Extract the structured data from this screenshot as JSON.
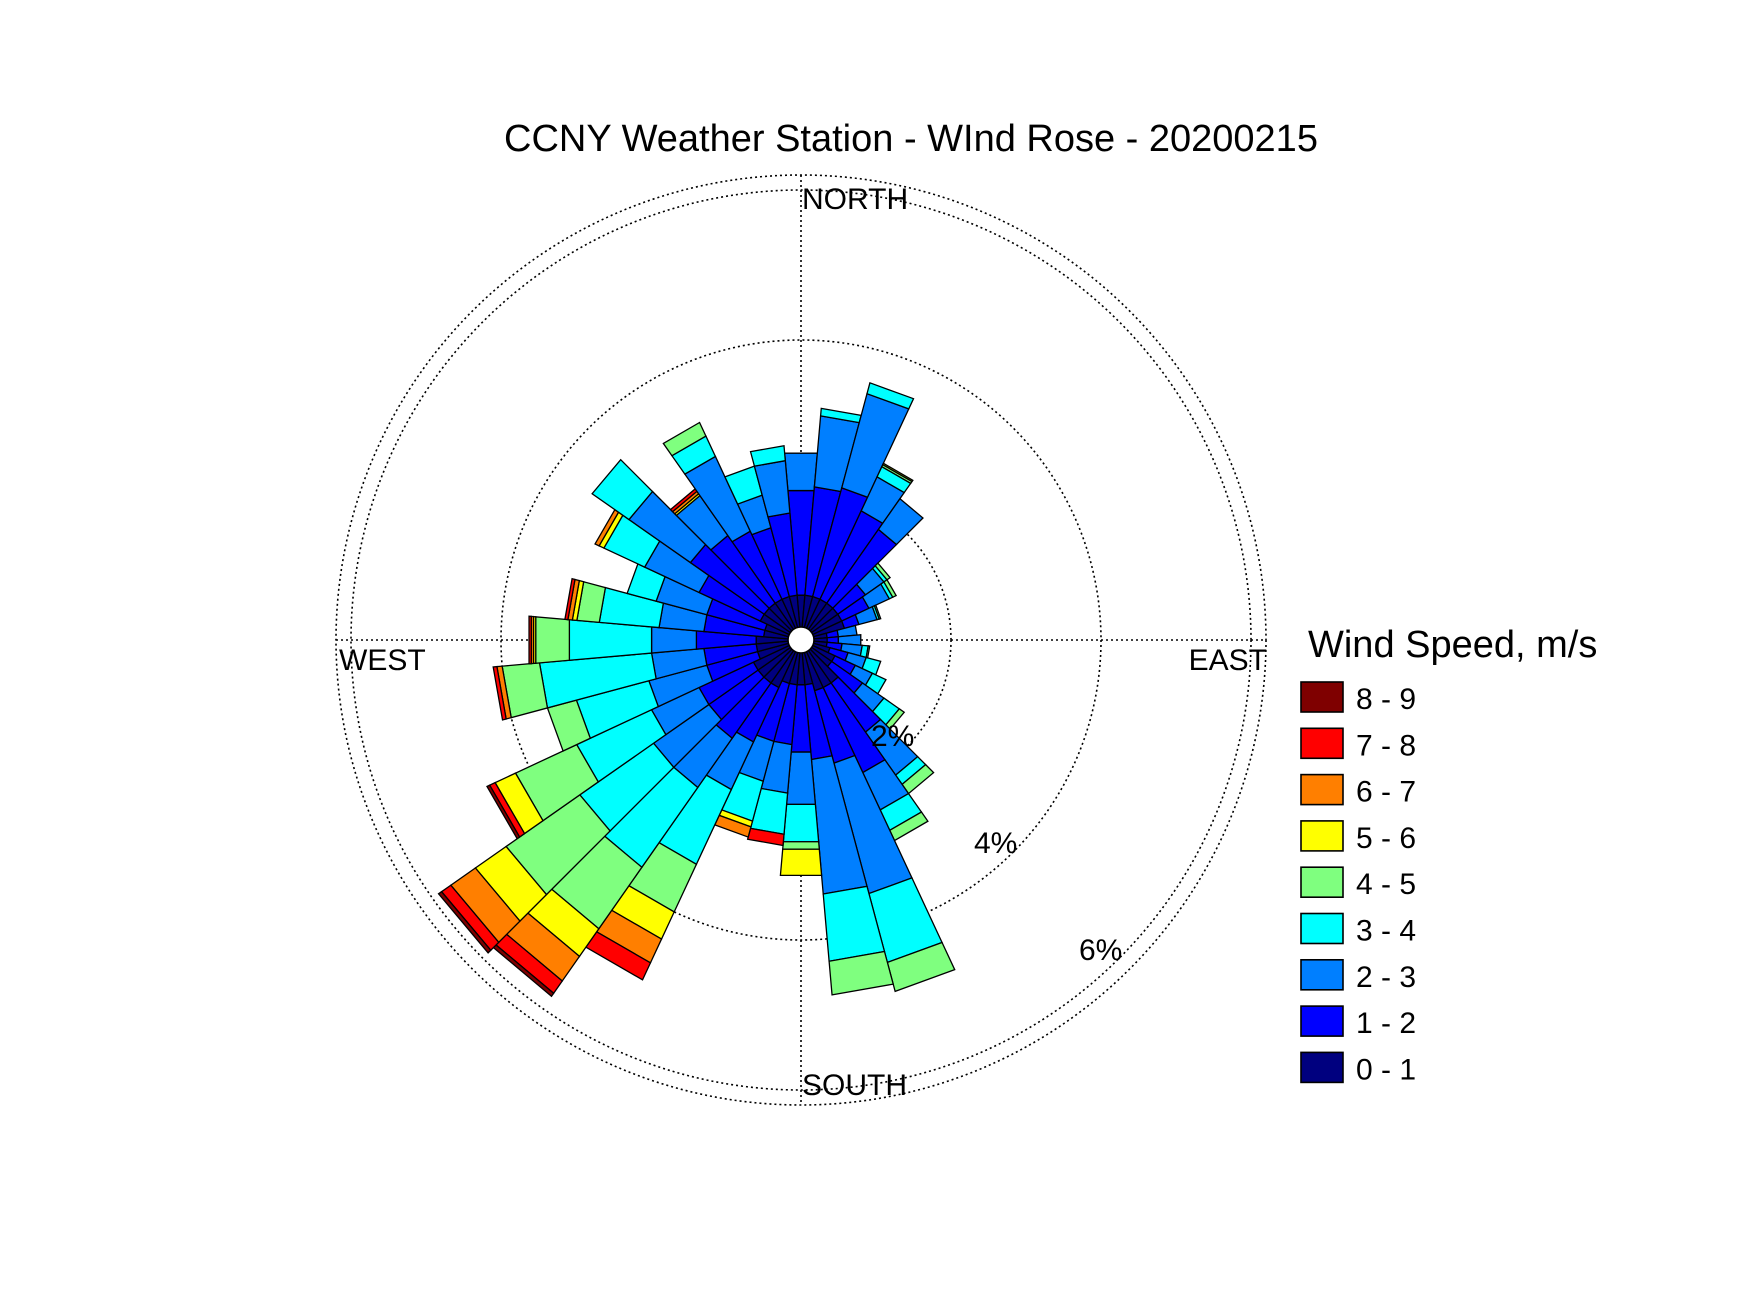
{
  "chart_data": {
    "type": "windrose",
    "title": "CCNY Weather Station - WInd Rose - 20200215",
    "directions": {
      "north": "NORTH",
      "south": "SOUTH",
      "east": "EAST",
      "west": "WEST"
    },
    "radial_ticks": [
      "2%",
      "4%",
      "6%"
    ],
    "radial_tick_values": [
      2,
      4,
      6
    ],
    "rmax": 6.2,
    "sector_count": 36,
    "legend_title": "Wind Speed, m/s",
    "bins": [
      {
        "label": "0 - 1",
        "color": "#00007F"
      },
      {
        "label": "1 - 2",
        "color": "#0000FF"
      },
      {
        "label": "2 - 3",
        "color": "#007FFF"
      },
      {
        "label": "3 - 4",
        "color": "#00FFFF"
      },
      {
        "label": "4 - 5",
        "color": "#7FFF7F"
      },
      {
        "label": "5 - 6",
        "color": "#FFFF00"
      },
      {
        "label": "6 - 7",
        "color": "#FF7F00"
      },
      {
        "label": "7 - 8",
        "color": "#FF0000"
      },
      {
        "label": "8 - 9",
        "color": "#7F0000"
      }
    ],
    "sectors": [
      {
        "direction_deg": 0,
        "cumulative_pct": [
          0.6,
          2.0,
          2.5
        ]
      },
      {
        "direction_deg": 10,
        "cumulative_pct": [
          0.6,
          2.05,
          3.0,
          3.1
        ]
      },
      {
        "direction_deg": 20,
        "cumulative_pct": [
          0.6,
          2.1,
          3.4,
          3.55
        ]
      },
      {
        "direction_deg": 30,
        "cumulative_pct": [
          0.6,
          1.9,
          2.4,
          2.55,
          2.58,
          2.6
        ]
      },
      {
        "direction_deg": 40,
        "cumulative_pct": [
          0.6,
          1.8,
          2.3
        ]
      },
      {
        "direction_deg": 50,
        "cumulative_pct": [
          0.6,
          1.05,
          1.35,
          1.4,
          1.45
        ]
      },
      {
        "direction_deg": 60,
        "cumulative_pct": [
          0.6,
          1.0,
          1.3,
          1.35,
          1.4
        ]
      },
      {
        "direction_deg": 70,
        "cumulative_pct": [
          0.6,
          0.8,
          1.05,
          1.08,
          1.1
        ]
      },
      {
        "direction_deg": 80,
        "cumulative_pct": [
          0.35,
          0.5,
          0.75
        ]
      },
      {
        "direction_deg": 90,
        "cumulative_pct": [
          0.35,
          0.5,
          0.8
        ]
      },
      {
        "direction_deg": 100,
        "cumulative_pct": [
          0.35,
          0.55,
          0.82,
          0.9,
          0.92
        ]
      },
      {
        "direction_deg": 110,
        "cumulative_pct": [
          0.4,
          0.65,
          0.9,
          1.1
        ]
      },
      {
        "direction_deg": 120,
        "cumulative_pct": [
          0.5,
          0.8,
          1.05,
          1.25
        ]
      },
      {
        "direction_deg": 130,
        "cumulative_pct": [
          0.5,
          1.0,
          1.35,
          1.6,
          1.68
        ]
      },
      {
        "direction_deg": 140,
        "cumulative_pct": [
          0.7,
          1.5,
          2.2,
          2.35,
          2.5
        ]
      },
      {
        "direction_deg": 150,
        "cumulative_pct": [
          0.7,
          1.95,
          2.5,
          2.8,
          2.95
        ]
      },
      {
        "direction_deg": 160,
        "cumulative_pct": [
          0.7,
          1.7,
          3.5,
          4.45,
          4.85
        ]
      },
      {
        "direction_deg": 170,
        "cumulative_pct": [
          0.6,
          1.6,
          3.4,
          4.3,
          4.75
        ]
      },
      {
        "direction_deg": 180,
        "cumulative_pct": [
          0.6,
          1.5,
          2.2,
          2.7,
          2.8,
          3.15
        ]
      },
      {
        "direction_deg": 190,
        "cumulative_pct": [
          0.6,
          1.4,
          2.05,
          2.6,
          2.6,
          2.6,
          2.6,
          2.75
        ]
      },
      {
        "direction_deg": 200,
        "cumulative_pct": [
          0.6,
          1.4,
          1.95,
          2.5,
          2.5,
          2.58,
          2.72
        ]
      },
      {
        "direction_deg": 210,
        "cumulative_pct": [
          0.7,
          1.5,
          2.2,
          3.3,
          4.0,
          4.4,
          4.75,
          5.0
        ]
      },
      {
        "direction_deg": 220,
        "cumulative_pct": [
          0.7,
          1.6,
          2.4,
          3.7,
          4.7,
          5.15,
          5.55,
          5.75,
          5.8
        ]
      },
      {
        "direction_deg": 230,
        "cumulative_pct": [
          0.7,
          1.5,
          2.4,
          3.6,
          4.8,
          5.3,
          5.7,
          5.85,
          5.9
        ]
      },
      {
        "direction_deg": 240,
        "cumulative_pct": [
          0.7,
          1.5,
          2.2,
          3.3,
          4.2,
          4.5,
          4.5,
          4.58,
          4.62
        ]
      },
      {
        "direction_deg": 250,
        "cumulative_pct": [
          0.6,
          1.3,
          2.1,
          3.1,
          3.5,
          3.5,
          3.5,
          3.5
        ]
      },
      {
        "direction_deg": 260,
        "cumulative_pct": [
          0.6,
          1.3,
          2.0,
          3.5,
          4.0,
          4.0,
          4.07,
          4.12
        ]
      },
      {
        "direction_deg": 270,
        "cumulative_pct": [
          0.6,
          1.4,
          2.0,
          3.1,
          3.55,
          3.58,
          3.61,
          3.64
        ]
      },
      {
        "direction_deg": 280,
        "cumulative_pct": [
          0.5,
          1.3,
          1.9,
          2.7,
          3.0,
          3.06,
          3.12,
          3.16
        ]
      },
      {
        "direction_deg": 290,
        "cumulative_pct": [
          0.5,
          1.3,
          2.0,
          2.4
        ]
      },
      {
        "direction_deg": 300,
        "cumulative_pct": [
          0.6,
          1.5,
          2.3,
          2.9,
          2.9,
          2.97,
          3.03
        ]
      },
      {
        "direction_deg": 310,
        "cumulative_pct": [
          0.6,
          1.8,
          2.8,
          3.4
        ]
      },
      {
        "direction_deg": 320,
        "cumulative_pct": [
          0.6,
          1.7,
          2.35,
          2.35,
          2.35,
          2.38,
          2.42,
          2.46
        ]
      },
      {
        "direction_deg": 330,
        "cumulative_pct": [
          0.6,
          1.6,
          2.7,
          3.0,
          3.2
        ]
      },
      {
        "direction_deg": 340,
        "cumulative_pct": [
          0.6,
          1.55,
          2.0,
          2.4
        ]
      },
      {
        "direction_deg": 350,
        "cumulative_pct": [
          0.6,
          1.7,
          2.4,
          2.6
        ]
      }
    ]
  }
}
